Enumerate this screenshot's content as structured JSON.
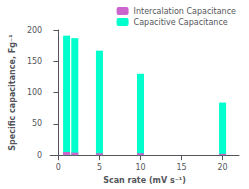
{
  "chart_data": {
    "type": "bar",
    "stacked": true,
    "x": [
      1,
      2,
      5,
      10,
      20
    ],
    "series": [
      {
        "name": "Capacitive Capacitance",
        "color": "#00ffcc",
        "values": [
          191,
          187,
          167,
          130,
          84
        ]
      },
      {
        "name": "Intercalation Capacitance",
        "color": "#cc66cc",
        "values": [
          5,
          4,
          3,
          3,
          2
        ]
      }
    ],
    "xlabel": "Scan rate (mV s⁻¹)",
    "ylabel": "Specific capacitance, Fg⁻¹",
    "xlim": [
      -1,
      22
    ],
    "xticks": [
      0,
      5,
      10,
      15,
      20
    ],
    "ylim": [
      0,
      200
    ],
    "yticks": [
      0,
      50,
      100,
      150,
      200
    ],
    "grid": false,
    "legend": "upper right"
  }
}
